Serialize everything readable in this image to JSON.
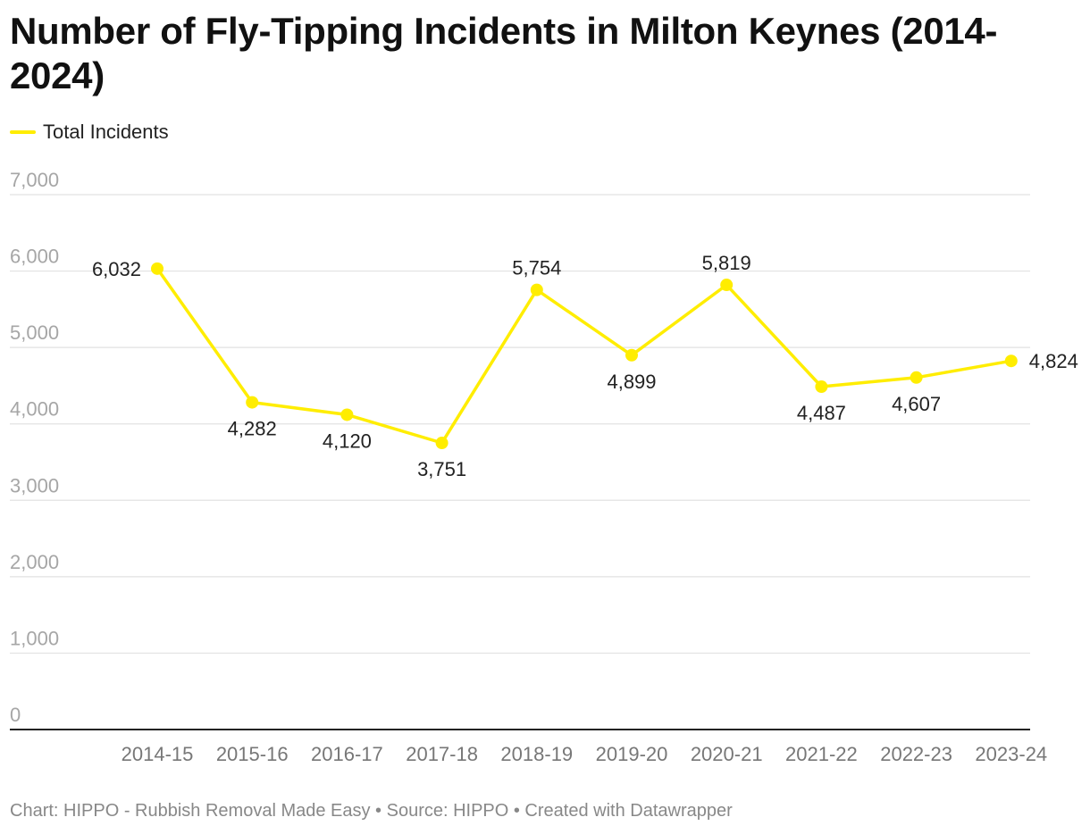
{
  "chart_data": {
    "type": "line",
    "title": "Number of Fly-Tipping Incidents in Milton Keynes (2014-2024)",
    "categories": [
      "2014-15",
      "2015-16",
      "2016-17",
      "2017-18",
      "2018-19",
      "2019-20",
      "2020-21",
      "2021-22",
      "2022-23",
      "2023-24"
    ],
    "series": [
      {
        "name": "Total Incidents",
        "values": [
          6032,
          4282,
          4120,
          3751,
          5754,
          4899,
          5819,
          4487,
          4607,
          4824
        ],
        "labels": [
          "6,032",
          "4,282",
          "4,120",
          "3,751",
          "5,754",
          "4,899",
          "5,819",
          "4,487",
          "4,607",
          "4,824"
        ],
        "color": "#ffed00"
      }
    ],
    "ylim": [
      0,
      7000
    ],
    "yticks": [
      0,
      1000,
      2000,
      3000,
      4000,
      5000,
      6000,
      7000
    ],
    "ytick_labels": [
      "0",
      "1,000",
      "2,000",
      "3,000",
      "4,000",
      "5,000",
      "6,000",
      "7,000"
    ],
    "xlabel": "",
    "ylabel": "",
    "grid": true,
    "legend_position": "top-left"
  },
  "footer": {
    "text": "Chart: HIPPO - Rubbish Removal Made Easy • Source: HIPPO • Created with Datawrapper"
  },
  "colors": {
    "series": "#ffed00",
    "grid": "#e2e2e2",
    "axis": "#222222",
    "tick_text": "#a6a6a6",
    "category_text": "#777777",
    "label_text": "#222222"
  }
}
